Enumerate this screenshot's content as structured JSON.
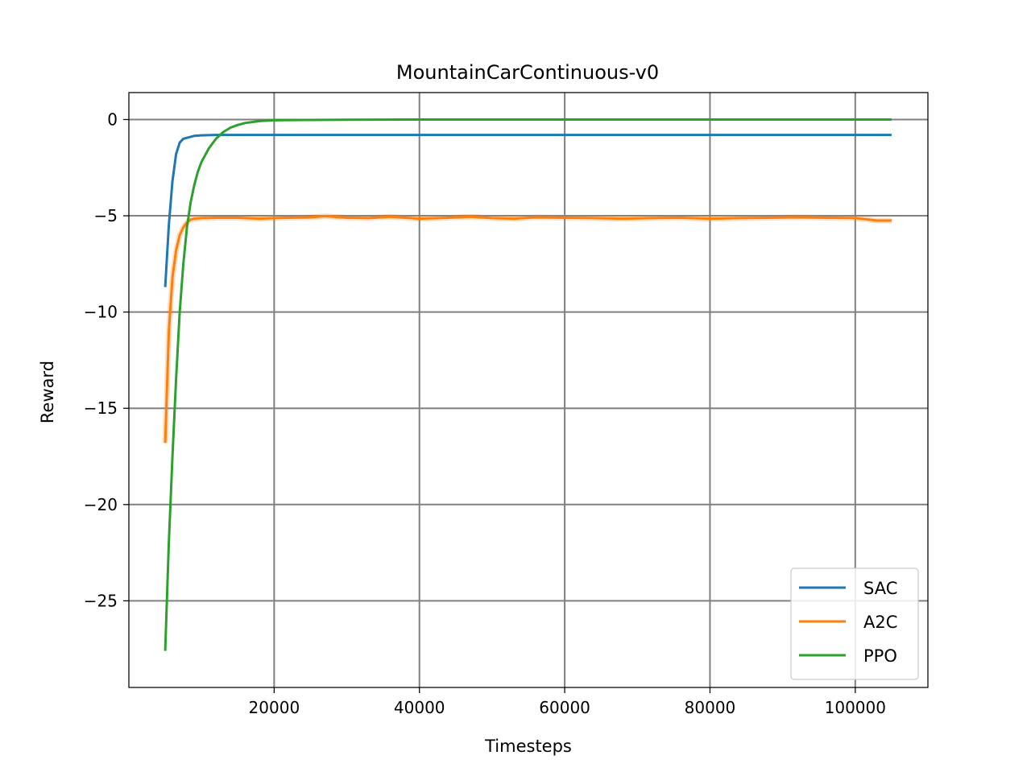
{
  "chart_data": {
    "type": "line",
    "title": "MountainCarContinuous-v0",
    "xlabel": "Timesteps",
    "ylabel": "Reward",
    "xlim": [
      0,
      110000
    ],
    "ylim": [
      -29.5,
      1.4
    ],
    "xticks": [
      20000,
      40000,
      60000,
      80000,
      100000
    ],
    "xtick_labels": [
      "20000",
      "40000",
      "60000",
      "80000",
      "100000"
    ],
    "yticks": [
      0,
      -5,
      -10,
      -15,
      -20,
      -25
    ],
    "ytick_labels": [
      "0",
      "−5",
      "−10",
      "−15",
      "−20",
      "−25"
    ],
    "grid": true,
    "legend_position": "bottom-right",
    "series": [
      {
        "name": "SAC",
        "color": "#1f77b4",
        "x": [
          5000,
          5500,
          6000,
          6500,
          7000,
          7500,
          8000,
          9000,
          10000,
          12000,
          15000,
          20000,
          30000,
          40000,
          50000,
          60000,
          70000,
          80000,
          90000,
          100000,
          105000
        ],
        "y": [
          -8.7,
          -5.5,
          -3.2,
          -1.8,
          -1.2,
          -1.0,
          -0.95,
          -0.85,
          -0.82,
          -0.8,
          -0.8,
          -0.8,
          -0.8,
          -0.8,
          -0.8,
          -0.8,
          -0.8,
          -0.8,
          -0.8,
          -0.8,
          -0.8
        ]
      },
      {
        "name": "A2C",
        "color": "#ff7f0e",
        "x": [
          5000,
          5500,
          6000,
          6500,
          7000,
          7500,
          8000,
          8500,
          9000,
          10000,
          12000,
          15000,
          18000,
          20000,
          22000,
          25000,
          27000,
          30000,
          33000,
          36000,
          40000,
          44000,
          47000,
          50000,
          53000,
          56000,
          60000,
          64000,
          68000,
          72000,
          76000,
          80000,
          84000,
          88000,
          92000,
          96000,
          100000,
          103000,
          105000
        ],
        "y": [
          -16.8,
          -11.0,
          -8.2,
          -6.8,
          -6.0,
          -5.6,
          -5.35,
          -5.2,
          -5.15,
          -5.12,
          -5.1,
          -5.1,
          -5.15,
          -5.12,
          -5.1,
          -5.08,
          -5.02,
          -5.1,
          -5.12,
          -5.05,
          -5.15,
          -5.1,
          -5.05,
          -5.12,
          -5.15,
          -5.08,
          -5.1,
          -5.12,
          -5.15,
          -5.12,
          -5.1,
          -5.15,
          -5.12,
          -5.1,
          -5.08,
          -5.1,
          -5.12,
          -5.25,
          -5.25
        ]
      },
      {
        "name": "PPO",
        "color": "#2ca02c",
        "x": [
          5000,
          5500,
          6000,
          6500,
          7000,
          7500,
          8000,
          8500,
          9000,
          9500,
          10000,
          11000,
          12000,
          13000,
          14000,
          15000,
          16000,
          18000,
          20000,
          25000,
          30000,
          40000,
          60000,
          80000,
          100000,
          105000
        ],
        "y": [
          -27.6,
          -22.0,
          -17.5,
          -13.5,
          -10.0,
          -7.5,
          -5.6,
          -4.3,
          -3.4,
          -2.7,
          -2.2,
          -1.5,
          -1.0,
          -0.65,
          -0.42,
          -0.28,
          -0.18,
          -0.08,
          -0.04,
          -0.02,
          -0.01,
          0,
          0,
          0,
          0,
          0
        ]
      }
    ]
  }
}
